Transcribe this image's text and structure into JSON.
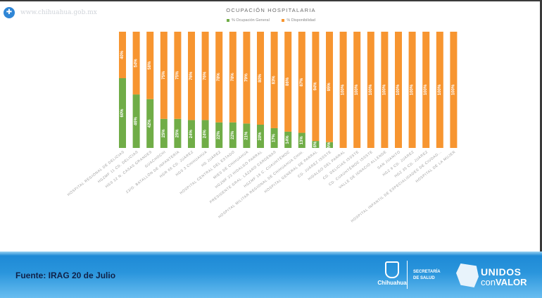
{
  "site": {
    "url_text": "www.chihuahua.gob.mx",
    "logo_icon": "plus-circle-icon"
  },
  "footer": {
    "source": "Fuente: IRAG 20 de Julio",
    "gov_logo_text": "Chihuahua",
    "secretaria_line1": "SECRETARÍA",
    "secretaria_line2": "DE SALUD",
    "campaign_line1": "UNIDOS",
    "campaign_line2_a": "con",
    "campaign_line2_b": "VALOR"
  },
  "colors": {
    "occupancy": "#70ad47",
    "availability": "#f79530"
  },
  "chart_data": {
    "type": "bar",
    "stacked": true,
    "percent": true,
    "title": "OCUPACIÓN HOSPITALARIA",
    "xlabel": "",
    "ylabel": "",
    "ylim": [
      0,
      100
    ],
    "grid": false,
    "legend_position": "top",
    "categories": [
      "HOSPITAL REGIONAL DE DELICIAS",
      "HGZMF 11 CD. DELICIAS",
      "HGS 22 N. CASAS GRANDES",
      "GUACHOCHI",
      "23/O. BATALLÓN DE INFANTERÍA",
      "HGR 66 CD. JUÁREZ",
      "HGS 3 CHIHUAHUA",
      "HG JUÁREZ",
      "HOSPITAL CENTRAL DEL ESTADO",
      "MIES DE CHIHUAHUA",
      "HGZMF 23 HIDALGO PARRAL",
      "PRESIDENTE GRAL. LÁZARO CÁRDENAS",
      "HGZMF 16 C. CUAUHTÉMOC",
      "HOSPITAL MILITAR REGIONAL DE CHIHUAHUA CHIH.",
      "HOSPITAL GENERAL DE PARRAL",
      "CD. JUÁREZ ISSSTE",
      "HIDALGO DEL PARRAL",
      "CD. DELICIAS ISSSTE",
      "CD. CUAUHTÉMOC ISSSTE",
      "VALLE DE IGNACIO ALLENDE",
      "SAN JUANITO",
      "HGZ 6 CD. JUÁREZ",
      "HGZ 35 CD. JUÁREZ",
      "HOSPITAL INFANTIL DE ESPECIALIDADES DE CIUDAD...",
      "HOSPITAL DE LA MUJER"
    ],
    "series": [
      {
        "name": "% Ocupación General",
        "values": [
          60,
          46,
          42,
          25,
          25,
          24,
          24,
          22,
          22,
          21,
          20,
          17,
          14,
          13,
          6,
          5,
          0,
          0,
          0,
          0,
          0,
          0,
          0,
          0,
          0
        ]
      },
      {
        "name": "% Disponibilidad",
        "values": [
          40,
          54,
          58,
          75,
          75,
          76,
          76,
          78,
          78,
          79,
          80,
          83,
          86,
          87,
          94,
          95,
          100,
          100,
          100,
          100,
          100,
          100,
          100,
          100,
          100
        ]
      }
    ]
  }
}
